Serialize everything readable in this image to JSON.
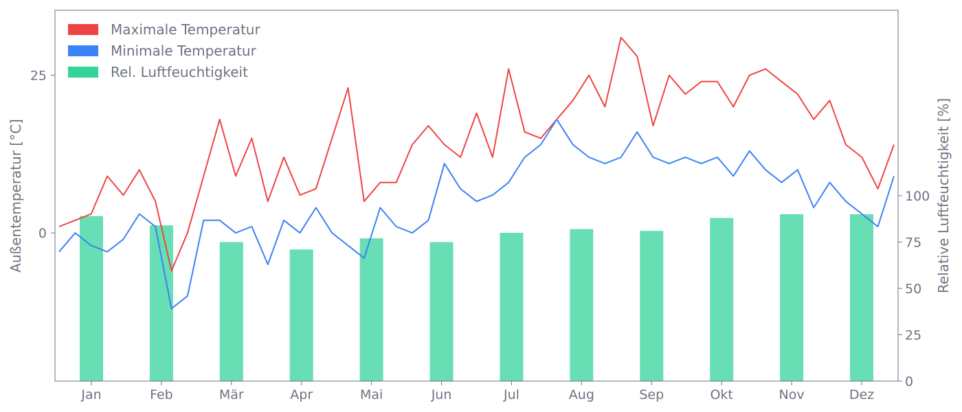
{
  "chart_data": {
    "type": "line",
    "colors": {
      "max_temp": "#ef4444",
      "min_temp": "#3b82f6",
      "humidity": "#34d399",
      "axis": "#6b7280"
    },
    "x_labels": [
      "Jan",
      "Feb",
      "Mär",
      "Apr",
      "Mai",
      "Jun",
      "Jul",
      "Aug",
      "Sep",
      "Okt",
      "Nov",
      "Dez"
    ],
    "y_left": {
      "label": "Außentemperatur [°C]",
      "ticks": [
        0,
        25
      ],
      "range": [
        -23.5,
        35.3
      ]
    },
    "y_right": {
      "label": "Relative Luftfeuchtigkeit [%]",
      "ticks": [
        0,
        25,
        50,
        75,
        100
      ],
      "range": [
        0,
        200
      ]
    },
    "legend": {
      "position": "top-left",
      "items": [
        "Maximale Temperatur",
        "Minimale Temperatur",
        "Rel. Luftfeuchtigkeit"
      ]
    },
    "grid": false,
    "humidity": {
      "unit": "%",
      "categories": [
        "Jan",
        "Feb",
        "Mär",
        "Apr",
        "Mai",
        "Jun",
        "Jul",
        "Aug",
        "Sep",
        "Okt",
        "Nov",
        "Dez"
      ],
      "values": [
        89,
        84,
        75,
        71,
        77,
        75,
        80,
        82,
        81,
        88,
        90,
        90
      ]
    },
    "max_temp": {
      "x": [
        1,
        8,
        15,
        22,
        29,
        36,
        43,
        50,
        57,
        64,
        71,
        78,
        85,
        92,
        99,
        106,
        113,
        120,
        127,
        134,
        141,
        148,
        155,
        162,
        169,
        176,
        183,
        190,
        197,
        204,
        211,
        218,
        225,
        232,
        239,
        246,
        253,
        260,
        267,
        274,
        281,
        288,
        295,
        302,
        309,
        316,
        323,
        330,
        337,
        344,
        351,
        358,
        365
      ],
      "y": [
        1,
        2,
        3,
        9,
        6,
        10,
        5,
        -6,
        0,
        9,
        18,
        9,
        15,
        5,
        12,
        6,
        7,
        15,
        23,
        5,
        8,
        8,
        14,
        17,
        14,
        12,
        19,
        12,
        26,
        16,
        15,
        18,
        21,
        25,
        20,
        31,
        28,
        17,
        25,
        22,
        24,
        24,
        20,
        25,
        26,
        24,
        22,
        18,
        21,
        14,
        12,
        7,
        14
      ]
    },
    "min_temp": {
      "x": [
        1,
        8,
        15,
        22,
        29,
        36,
        43,
        50,
        57,
        64,
        71,
        78,
        85,
        92,
        99,
        106,
        113,
        120,
        127,
        134,
        141,
        148,
        155,
        162,
        169,
        176,
        183,
        190,
        197,
        204,
        211,
        218,
        225,
        232,
        239,
        246,
        253,
        260,
        267,
        274,
        281,
        288,
        295,
        302,
        309,
        316,
        323,
        330,
        337,
        344,
        351,
        358,
        365
      ],
      "y": [
        -3,
        0,
        -2,
        -3,
        -1,
        3,
        1,
        -12,
        -10,
        2,
        2,
        0,
        1,
        -5,
        2,
        0,
        4,
        0,
        -2,
        -4,
        4,
        1,
        0,
        2,
        11,
        7,
        5,
        6,
        8,
        12,
        14,
        18,
        14,
        12,
        11,
        12,
        16,
        12,
        11,
        12,
        11,
        12,
        9,
        13,
        10,
        8,
        10,
        4,
        8,
        5,
        3,
        1,
        9
      ]
    }
  }
}
